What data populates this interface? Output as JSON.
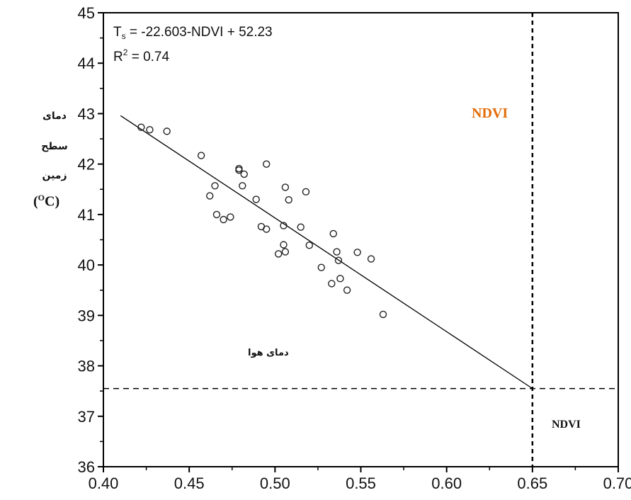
{
  "chart_data": {
    "type": "scatter",
    "xlim": [
      0.4,
      0.7
    ],
    "ylim": [
      36,
      45
    ],
    "x_ticks": [
      "0.40",
      "0.45",
      "0.50",
      "0.55",
      "0.60",
      "0.65",
      "0.70"
    ],
    "y_ticks": [
      "36",
      "37",
      "38",
      "39",
      "40",
      "41",
      "42",
      "43",
      "44",
      "45"
    ],
    "equation_lhs": "T",
    "equation_sub": "s",
    "equation_rhs": " = -22.603-NDVI + 52.23",
    "r2_prefix": "R",
    "r2_sup": "2",
    "r2_value": " = 0.74",
    "ylabel_line1": "دمای",
    "ylabel_line2": "سطح",
    "ylabel_line3": "زمین",
    "ylabel_unit_open": "(",
    "ylabel_unit_sup": "O",
    "ylabel_unit_letter": "C)",
    "annotation_top": "NDVI",
    "annotation_top_color": "#e36c09",
    "annotation_right": "NDVI",
    "annotation_air": "دمای هوا",
    "fit_line": {
      "x": [
        0.41,
        0.65
      ],
      "y": [
        42.96,
        37.55
      ]
    },
    "ref_vertical_x": 0.65,
    "ref_horizontal_y": 37.55,
    "points": [
      {
        "x": 0.422,
        "y": 42.73
      },
      {
        "x": 0.427,
        "y": 42.68
      },
      {
        "x": 0.437,
        "y": 42.65
      },
      {
        "x": 0.457,
        "y": 42.17
      },
      {
        "x": 0.462,
        "y": 41.37
      },
      {
        "x": 0.465,
        "y": 41.57
      },
      {
        "x": 0.466,
        "y": 41.0
      },
      {
        "x": 0.47,
        "y": 40.9
      },
      {
        "x": 0.474,
        "y": 40.95
      },
      {
        "x": 0.479,
        "y": 41.91
      },
      {
        "x": 0.479,
        "y": 41.88
      },
      {
        "x": 0.481,
        "y": 41.57
      },
      {
        "x": 0.482,
        "y": 41.8
      },
      {
        "x": 0.489,
        "y": 41.3
      },
      {
        "x": 0.492,
        "y": 40.76
      },
      {
        "x": 0.495,
        "y": 40.71
      },
      {
        "x": 0.495,
        "y": 42.0
      },
      {
        "x": 0.502,
        "y": 40.22
      },
      {
        "x": 0.505,
        "y": 40.78
      },
      {
        "x": 0.505,
        "y": 40.4
      },
      {
        "x": 0.506,
        "y": 40.26
      },
      {
        "x": 0.506,
        "y": 41.54
      },
      {
        "x": 0.508,
        "y": 41.29
      },
      {
        "x": 0.515,
        "y": 40.75
      },
      {
        "x": 0.518,
        "y": 41.45
      },
      {
        "x": 0.52,
        "y": 40.39
      },
      {
        "x": 0.527,
        "y": 39.95
      },
      {
        "x": 0.533,
        "y": 39.63
      },
      {
        "x": 0.534,
        "y": 40.62
      },
      {
        "x": 0.536,
        "y": 40.26
      },
      {
        "x": 0.537,
        "y": 40.09
      },
      {
        "x": 0.538,
        "y": 39.73
      },
      {
        "x": 0.542,
        "y": 39.5
      },
      {
        "x": 0.548,
        "y": 40.25
      },
      {
        "x": 0.556,
        "y": 40.12
      },
      {
        "x": 0.563,
        "y": 39.02
      }
    ]
  }
}
